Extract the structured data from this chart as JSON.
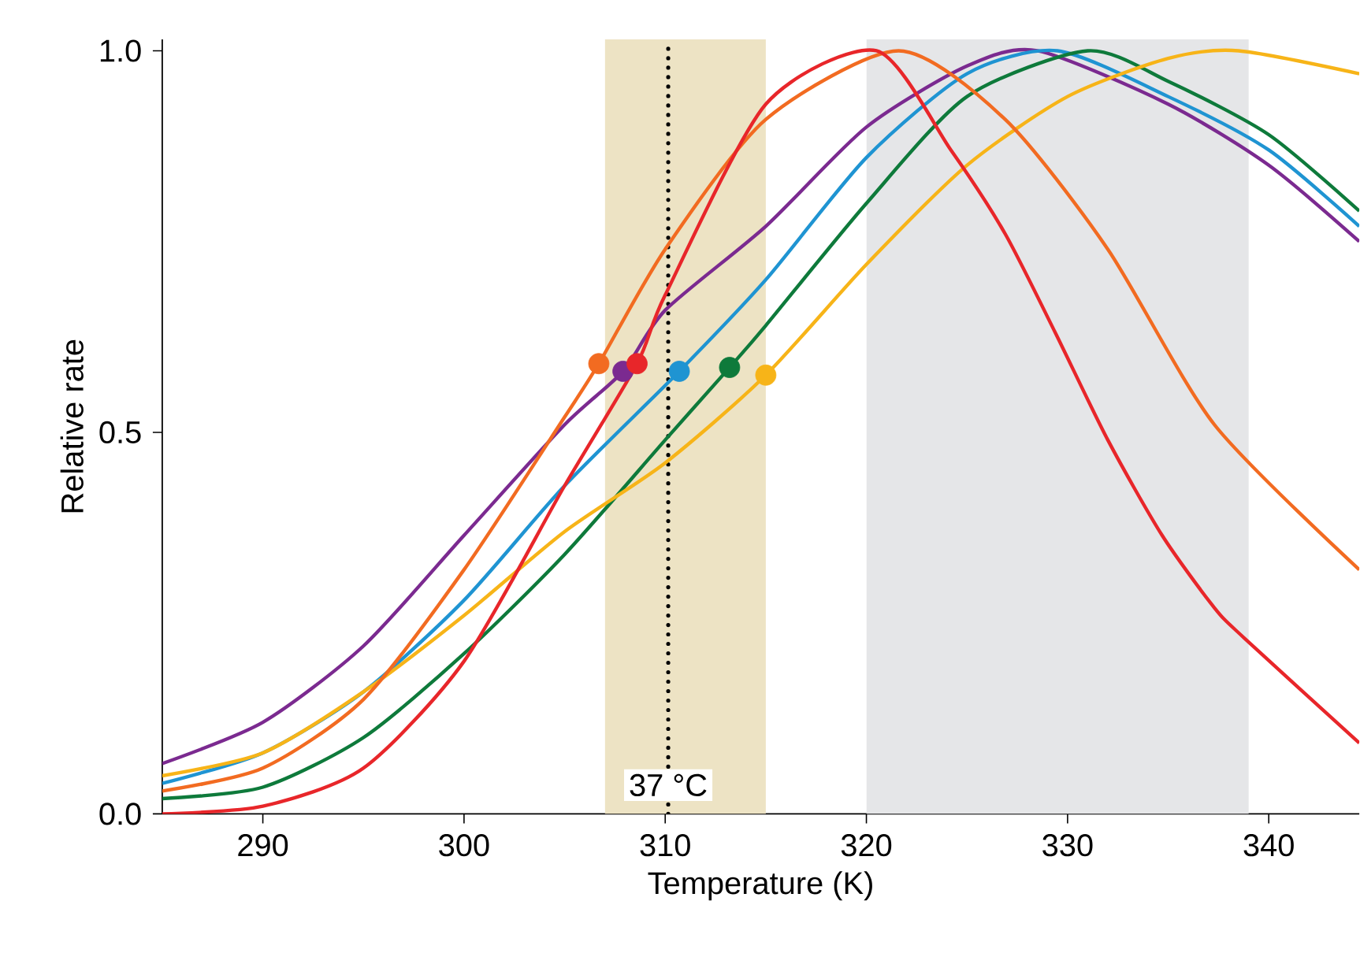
{
  "chart_data": {
    "type": "line",
    "xlabel": "Temperature (K)",
    "ylabel": "Relative rate",
    "xlim": [
      285,
      344.5
    ],
    "ylim": [
      0,
      1.015
    ],
    "xticks": [
      290,
      300,
      310,
      320,
      330,
      340
    ],
    "yticks": [
      {
        "value": 0,
        "label": "0.0"
      },
      {
        "value": 0.5,
        "label": "0.5"
      },
      {
        "value": 1,
        "label": "1.0"
      }
    ],
    "grid": false,
    "line_style": "solid",
    "bands": [
      {
        "axis": "x",
        "from": 307,
        "to": 315,
        "color": "#ede3c4"
      },
      {
        "axis": "x",
        "from": 320,
        "to": 339,
        "color": "#e5e6e8"
      }
    ],
    "ref_lines": [
      {
        "axis": "x",
        "value": 310.15,
        "label": "37 °C",
        "color": "#000000",
        "line_style": "dotted"
      }
    ],
    "series": [
      {
        "color": "#7b2a90",
        "x": [
          285,
          290,
          295,
          300,
          305,
          307.9,
          310,
          315,
          320,
          325,
          328.5,
          335,
          340,
          344.5
        ],
        "values": [
          0.066,
          0.12,
          0.22,
          0.365,
          0.51,
          0.58,
          0.66,
          0.77,
          0.9,
          0.98,
          1.0,
          0.93,
          0.85,
          0.75
        ]
      },
      {
        "color": "#1f94d2",
        "x": [
          285,
          290,
          295,
          300,
          305,
          310.7,
          315,
          320,
          325,
          329.5,
          335,
          340,
          344.5
        ],
        "values": [
          0.04,
          0.08,
          0.16,
          0.28,
          0.43,
          0.58,
          0.7,
          0.86,
          0.97,
          1.0,
          0.94,
          0.87,
          0.77
        ]
      },
      {
        "color": "#0e7a3b",
        "x": [
          285,
          290,
          295,
          300,
          305,
          310,
          313.2,
          315,
          320,
          325,
          331,
          335,
          340,
          344.5
        ],
        "values": [
          0.02,
          0.035,
          0.1,
          0.21,
          0.34,
          0.49,
          0.585,
          0.64,
          0.8,
          0.94,
          1.0,
          0.96,
          0.89,
          0.79
        ]
      },
      {
        "color": "#f7b418",
        "x": [
          285,
          290,
          295,
          300,
          305,
          310,
          315,
          320,
          325,
          330,
          335,
          338.5,
          344.5
        ],
        "values": [
          0.05,
          0.08,
          0.16,
          0.26,
          0.37,
          0.46,
          0.575,
          0.72,
          0.85,
          0.94,
          0.99,
          1.0,
          0.97
        ]
      },
      {
        "color": "#f26b21",
        "x": [
          285,
          290,
          295,
          300,
          305,
          306.7,
          310,
          315,
          321.6,
          326.9,
          332,
          337.3,
          344.5
        ],
        "values": [
          0.03,
          0.06,
          0.15,
          0.32,
          0.52,
          0.59,
          0.74,
          0.91,
          1.0,
          0.91,
          0.74,
          0.51,
          0.32
        ]
      },
      {
        "color": "#e8262a",
        "x": [
          285,
          290,
          295,
          300,
          305,
          308.6,
          310,
          315,
          320.5,
          324.2,
          326.9,
          329.4,
          332,
          334.7,
          337.3,
          338.8,
          344.5
        ],
        "values": [
          0.0,
          0.01,
          0.06,
          0.2,
          0.43,
          0.59,
          0.68,
          0.93,
          1.0,
          0.87,
          0.76,
          0.63,
          0.49,
          0.365,
          0.27,
          0.23,
          0.093
        ]
      },
      {
        "type": "scatter",
        "marker": "circle",
        "x": [
          306.7,
          307.9,
          308.6,
          310.7,
          313.2,
          315
        ],
        "values": [
          0.59,
          0.58,
          0.59,
          0.58,
          0.585,
          0.575
        ],
        "colors": [
          "#f26b21",
          "#7b2a90",
          "#e8262a",
          "#1f94d2",
          "#0e7a3b",
          "#f7b418"
        ]
      }
    ]
  }
}
